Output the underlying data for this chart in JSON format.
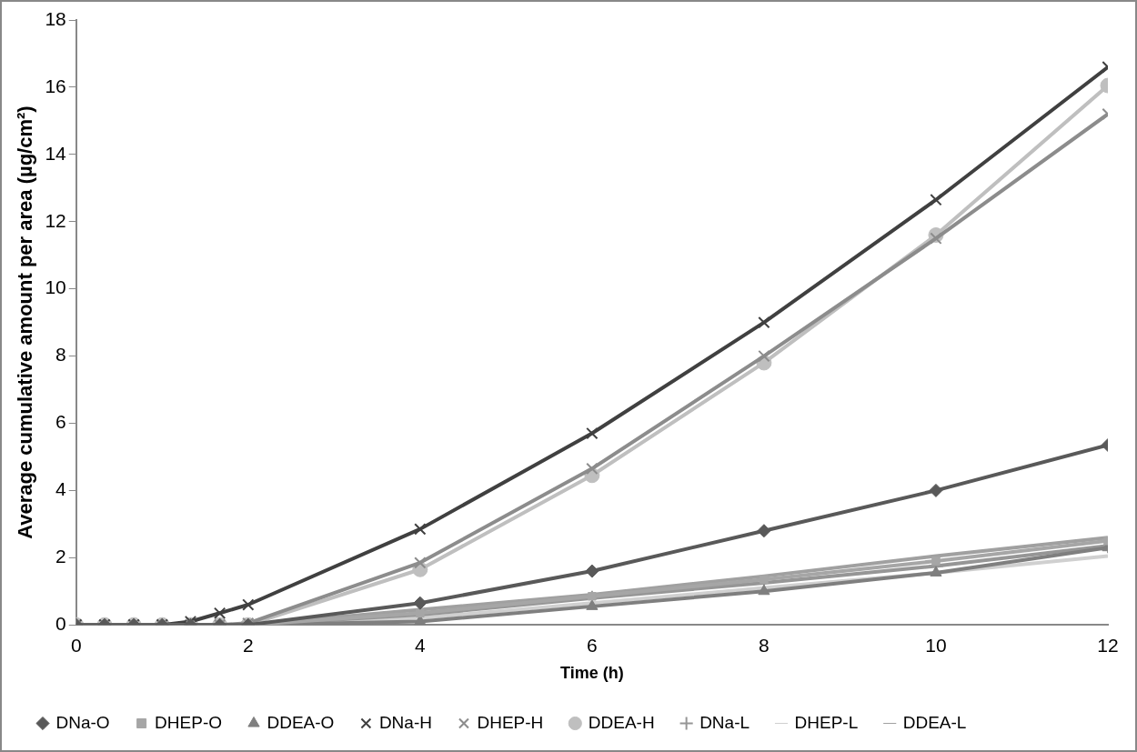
{
  "chart_data": {
    "type": "line",
    "xlabel": "Time (h)",
    "ylabel": "Average cumulative amount per area (µg/cm²)",
    "x": [
      0,
      0.33,
      0.67,
      1,
      1.33,
      1.67,
      2,
      4,
      6,
      8,
      10,
      12
    ],
    "xlim": [
      0,
      12
    ],
    "xticks": [
      0,
      2,
      4,
      6,
      8,
      10,
      12
    ],
    "ylim": [
      0,
      18
    ],
    "yticks": [
      0,
      2,
      4,
      6,
      8,
      10,
      12,
      14,
      16,
      18
    ],
    "grid": false,
    "legend": "bottom",
    "line_style": "solid",
    "series": [
      {
        "name": "DNa-O",
        "color": "#595959",
        "marker": "diamond",
        "values": [
          0,
          0,
          0,
          0,
          0,
          0,
          0,
          0.65,
          1.6,
          2.8,
          4.0,
          5.35
        ]
      },
      {
        "name": "DHEP-O",
        "color": "#a6a6a6",
        "marker": "square",
        "values": [
          0,
          0,
          0,
          0,
          0,
          0,
          0,
          0.35,
          0.85,
          1.35,
          1.9,
          2.5
        ]
      },
      {
        "name": "DDEA-O",
        "color": "#7f7f7f",
        "marker": "triangle",
        "values": [
          0,
          0,
          0,
          0,
          0,
          0,
          0,
          0.1,
          0.55,
          1.0,
          1.55,
          2.3
        ]
      },
      {
        "name": "DNa-H",
        "color": "#404040",
        "marker": "cross",
        "values": [
          0,
          0,
          0,
          0,
          0.1,
          0.35,
          0.6,
          2.85,
          5.7,
          9.0,
          12.65,
          16.6
        ]
      },
      {
        "name": "DHEP-H",
        "color": "#8c8c8c",
        "marker": "cross",
        "values": [
          0,
          0,
          0,
          0,
          0,
          0,
          0.05,
          1.85,
          4.65,
          8.0,
          11.5,
          15.2
        ]
      },
      {
        "name": "DDEA-H",
        "color": "#bfbfbf",
        "marker": "circle",
        "values": [
          0,
          0,
          0,
          0,
          0,
          0,
          0,
          1.65,
          4.45,
          7.8,
          11.6,
          16.05
        ]
      },
      {
        "name": "DNa-L",
        "color": "#969696",
        "marker": "plus",
        "values": [
          0,
          0,
          0,
          0,
          0,
          0,
          0,
          0.3,
          0.8,
          1.25,
          1.75,
          2.35
        ]
      },
      {
        "name": "DHEP-L",
        "color": "#d0d0d0",
        "marker": "none",
        "values": [
          0,
          0,
          0,
          0,
          0,
          0,
          0,
          0.2,
          0.65,
          1.1,
          1.55,
          2.05
        ]
      },
      {
        "name": "DDEA-L",
        "color": "#a0a0a0",
        "marker": "none",
        "values": [
          0,
          0,
          0,
          0,
          0,
          0,
          0,
          0.45,
          0.9,
          1.45,
          2.05,
          2.6
        ]
      }
    ]
  }
}
